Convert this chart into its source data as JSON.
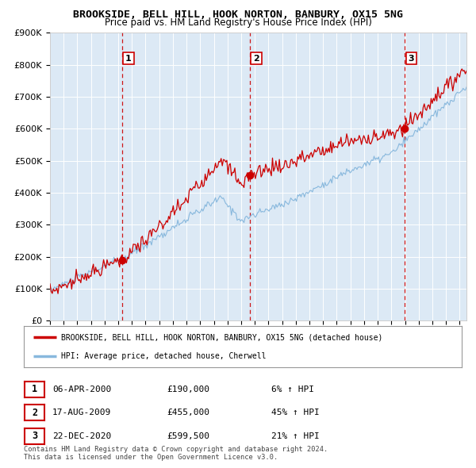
{
  "title": "BROOKSIDE, BELL HILL, HOOK NORTON, BANBURY, OX15 5NG",
  "subtitle": "Price paid vs. HM Land Registry's House Price Index (HPI)",
  "plot_bg_color": "#dce9f5",
  "ylim": [
    0,
    900000
  ],
  "yticks": [
    0,
    100000,
    200000,
    300000,
    400000,
    500000,
    600000,
    700000,
    800000,
    900000
  ],
  "ytick_labels": [
    "£0",
    "£100K",
    "£200K",
    "£300K",
    "£400K",
    "£500K",
    "£600K",
    "£700K",
    "£800K",
    "£900K"
  ],
  "year_start": 1995,
  "year_end": 2025,
  "sale_dates_year": [
    2000.27,
    2009.63,
    2020.97
  ],
  "sale_prices": [
    190000,
    455000,
    599500
  ],
  "sale_labels": [
    "1",
    "2",
    "3"
  ],
  "legend_line1": "BROOKSIDE, BELL HILL, HOOK NORTON, BANBURY, OX15 5NG (detached house)",
  "legend_line2": "HPI: Average price, detached house, Cherwell",
  "table_rows": [
    {
      "label": "1",
      "date": "06-APR-2000",
      "price": "£190,000",
      "pct": "6% ↑ HPI"
    },
    {
      "label": "2",
      "date": "17-AUG-2009",
      "price": "£455,000",
      "pct": "45% ↑ HPI"
    },
    {
      "label": "3",
      "date": "22-DEC-2020",
      "price": "£599,500",
      "pct": "21% ↑ HPI"
    }
  ],
  "footer": "Contains HM Land Registry data © Crown copyright and database right 2024.\nThis data is licensed under the Open Government Licence v3.0.",
  "red_line_color": "#cc0000",
  "blue_line_color": "#88b8dd",
  "dot_color": "#cc0000"
}
